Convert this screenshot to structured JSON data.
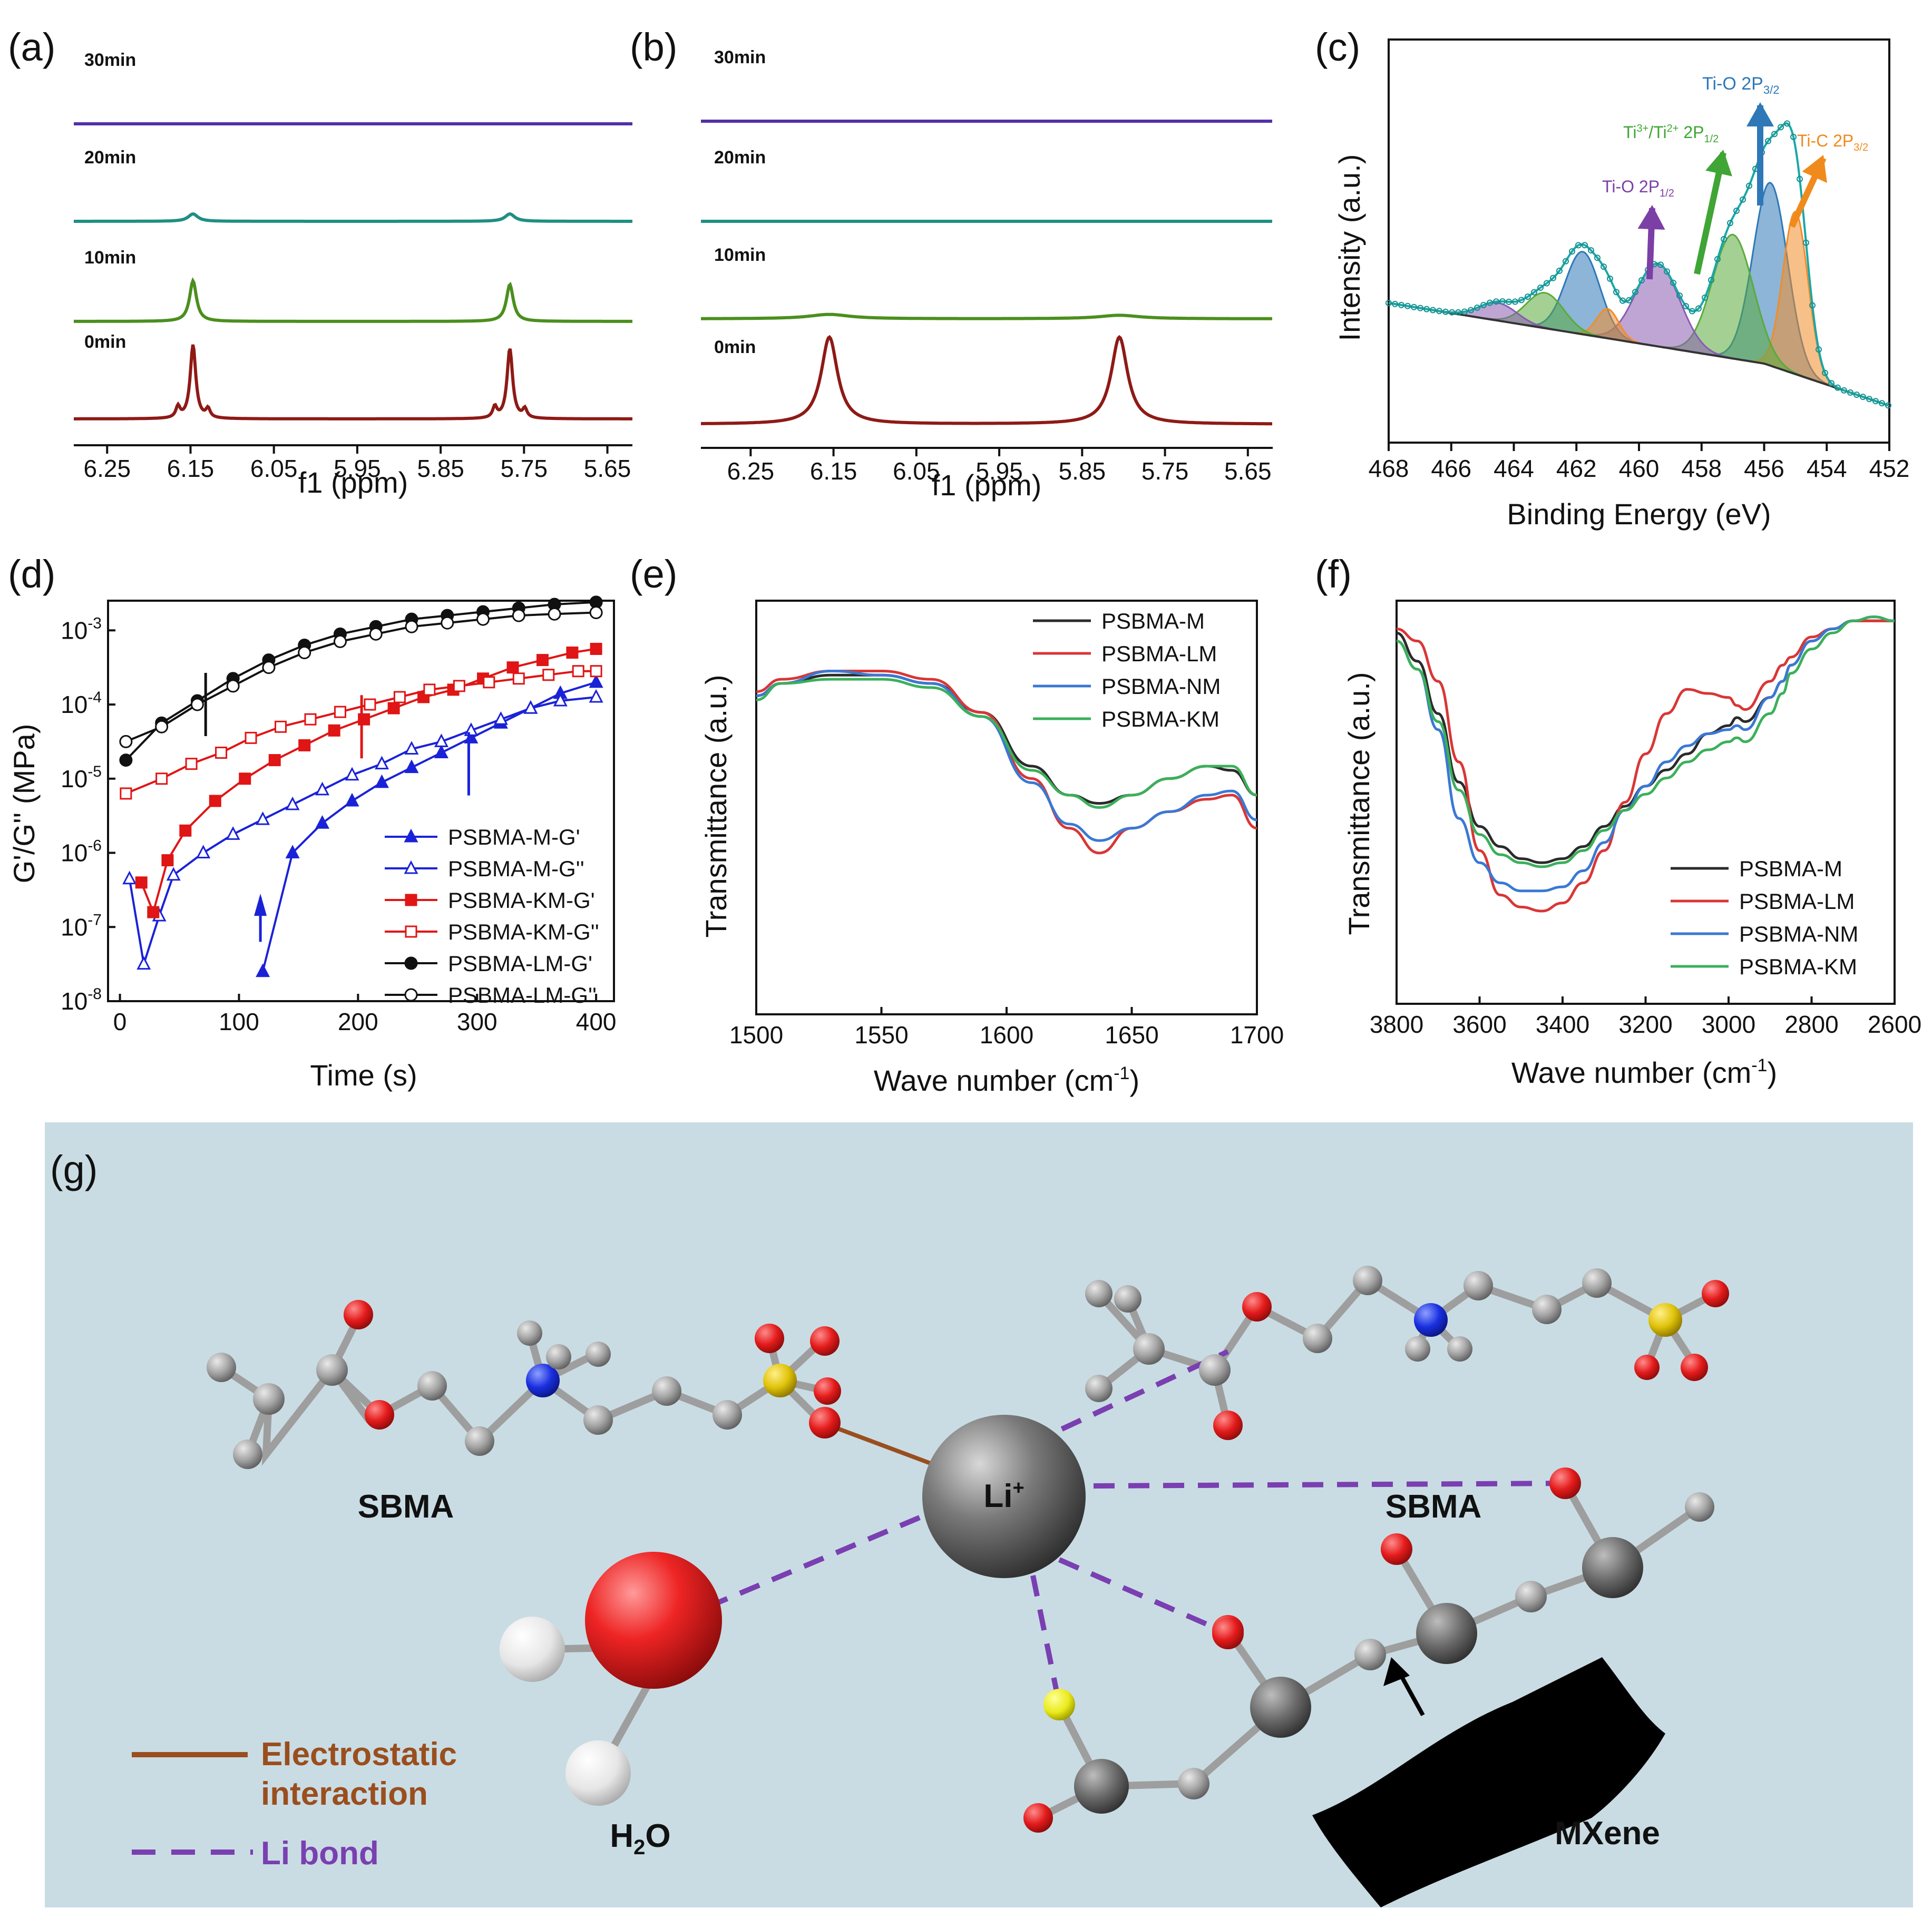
{
  "panel_labels": [
    "(a)",
    "(b)",
    "(c)",
    "(d)",
    "(e)",
    "(f)",
    "(g)"
  ],
  "chart_data": [
    {
      "id": "a",
      "type": "line",
      "xlabel": "f1 (ppm)",
      "ylabel": "",
      "xlim": [
        6.29,
        5.62
      ],
      "reversed_x": true,
      "xticks": [
        "6.25",
        "6.15",
        "6.05",
        "5.95",
        "5.85",
        "5.75",
        "5.65"
      ],
      "series": [
        {
          "name": "0min",
          "color": "#8e1a16",
          "peaks": [
            {
              "x": 6.147,
              "h": 1.0,
              "w": 0.004
            },
            {
              "x": 6.165,
              "h": 0.15,
              "w": 0.003
            },
            {
              "x": 6.129,
              "h": 0.12,
              "w": 0.003
            },
            {
              "x": 5.767,
              "h": 0.95,
              "w": 0.004
            },
            {
              "x": 5.785,
              "h": 0.15,
              "w": 0.003
            },
            {
              "x": 5.749,
              "h": 0.12,
              "w": 0.003
            }
          ]
        },
        {
          "name": "10min",
          "color": "#4b8f1e",
          "peaks": [
            {
              "x": 6.147,
              "h": 0.55,
              "w": 0.005
            },
            {
              "x": 5.767,
              "h": 0.5,
              "w": 0.005
            }
          ]
        },
        {
          "name": "20min",
          "color": "#1f8f84",
          "peaks": [
            {
              "x": 6.147,
              "h": 0.1,
              "w": 0.007
            },
            {
              "x": 5.767,
              "h": 0.1,
              "w": 0.007
            }
          ]
        },
        {
          "name": "30min",
          "color": "#5230a8",
          "peaks": []
        }
      ]
    },
    {
      "id": "b",
      "type": "line",
      "xlabel": "f1 (ppm)",
      "ylabel": "",
      "xlim": [
        6.31,
        5.62
      ],
      "reversed_x": true,
      "xticks": [
        "6.25",
        "6.15",
        "6.05",
        "5.95",
        "5.85",
        "5.75",
        "5.65"
      ],
      "series": [
        {
          "name": "0min",
          "color": "#8e1a16",
          "peaks": [
            {
              "x": 6.155,
              "h": 1.0,
              "w": 0.012
            },
            {
              "x": 5.805,
              "h": 1.0,
              "w": 0.012
            }
          ]
        },
        {
          "name": "10min",
          "color": "#4b8f1e",
          "peaks": [
            {
              "x": 6.155,
              "h": 0.05,
              "w": 0.03
            },
            {
              "x": 5.805,
              "h": 0.04,
              "w": 0.03
            }
          ]
        },
        {
          "name": "20min",
          "color": "#1f8f84",
          "peaks": []
        },
        {
          "name": "30min",
          "color": "#5230a8",
          "peaks": []
        }
      ]
    },
    {
      "id": "c",
      "type": "area",
      "title": "",
      "xlabel": "Binding Energy (eV)",
      "ylabel": "Intensity (a.u.)",
      "xlim": [
        468,
        452
      ],
      "reversed_x": true,
      "xticks": [
        "468",
        "466",
        "464",
        "462",
        "460",
        "458",
        "456",
        "454",
        "452"
      ],
      "components": [
        {
          "name": "Ti-O 2P3/2",
          "center": 455.8,
          "height": 0.62,
          "sigma": 0.55,
          "color": "#2e78b7"
        },
        {
          "name": "Ti-C 2P3/2",
          "center": 455.0,
          "height": 0.55,
          "sigma": 0.4,
          "color": "#f28c28"
        },
        {
          "name": "Ti3+/Ti2+ 2P1/2",
          "center": 457.0,
          "height": 0.42,
          "sigma": 0.65,
          "color": "#5aaa3c"
        },
        {
          "name": "Ti-O 2P1/2",
          "center": 459.4,
          "height": 0.28,
          "sigma": 0.7,
          "color": "#8a5bb0"
        },
        {
          "name": "Ti-O 2P3/2 sat",
          "center": 461.8,
          "height": 0.28,
          "sigma": 0.55,
          "color": "#2e78b7"
        },
        {
          "name": "Ti-C sat",
          "center": 461.0,
          "height": 0.1,
          "sigma": 0.35,
          "color": "#f28c28"
        },
        {
          "name": "Ti3+ sat",
          "center": 463.0,
          "height": 0.12,
          "sigma": 0.6,
          "color": "#5aaa3c"
        },
        {
          "name": "Ti-O 2P1/2 sat",
          "center": 464.5,
          "height": 0.06,
          "sigma": 0.6,
          "color": "#8a5bb0"
        }
      ],
      "annotations": {
        "ti_o_32": {
          "base": "Ti-O 2P",
          "sub": "3/2",
          "color": "#2e78b7"
        },
        "ti3": {
          "base1": "Ti",
          "sup1": "3+",
          "mid": "/Ti",
          "sup2": "2+",
          "tail": " 2P",
          "sub": "1/2",
          "color": "#3fa535"
        },
        "ti_o_12": {
          "base": "Ti-O 2P",
          "sub": "1/2",
          "color": "#7b3fa5"
        },
        "ti_c": {
          "base": "Ti-C 2P",
          "sub": "3/2",
          "color": "#f08a1c"
        }
      }
    },
    {
      "id": "d",
      "type": "scatter",
      "xlabel": "Time (s)",
      "ylabel": "G'/G'' (MPa)",
      "xlim": [
        -10,
        415
      ],
      "ylog": true,
      "ylim_exp": [
        -8,
        -2.6
      ],
      "xticks": [
        "0",
        "100",
        "200",
        "300",
        "400"
      ],
      "yticks": [
        {
          "base": "10",
          "exp": "-3"
        },
        {
          "base": "10",
          "exp": "-4"
        },
        {
          "base": "10",
          "exp": "-5"
        },
        {
          "base": "10",
          "exp": "-6"
        },
        {
          "base": "10",
          "exp": "-7"
        },
        {
          "base": "10",
          "exp": "-8"
        }
      ],
      "series": [
        {
          "name": "PSBMA-M-G'",
          "color": "#1a22d8",
          "filled": true,
          "marker": "triangle",
          "x": [
            120,
            145,
            170,
            195,
            220,
            245,
            270,
            295,
            320,
            345,
            370,
            400
          ],
          "log10y": [
            -7.6,
            -6.0,
            -5.6,
            -5.3,
            -5.05,
            -4.85,
            -4.65,
            -4.45,
            -4.25,
            -4.05,
            -3.85,
            -3.7
          ]
        },
        {
          "name": "PSBMA-M-G''",
          "color": "#1a22d8",
          "filled": false,
          "marker": "triangle",
          "x": [
            8,
            20,
            33,
            45,
            70,
            95,
            120,
            145,
            170,
            195,
            220,
            245,
            270,
            295,
            320,
            345,
            370,
            400
          ],
          "log10y": [
            -6.35,
            -7.5,
            -6.85,
            -6.3,
            -6.0,
            -5.75,
            -5.55,
            -5.35,
            -5.15,
            -4.95,
            -4.8,
            -4.6,
            -4.5,
            -4.35,
            -4.2,
            -4.05,
            -3.95,
            -3.9
          ]
        },
        {
          "name": "PSBMA-KM-G'",
          "color": "#e01515",
          "filled": true,
          "marker": "square",
          "x": [
            18,
            28,
            40,
            55,
            80,
            105,
            130,
            155,
            180,
            205,
            230,
            255,
            280,
            305,
            330,
            355,
            380,
            400
          ],
          "log10y": [
            -6.4,
            -6.8,
            -6.1,
            -5.7,
            -5.3,
            -5.0,
            -4.75,
            -4.55,
            -4.35,
            -4.2,
            -4.05,
            -3.9,
            -3.8,
            -3.65,
            -3.5,
            -3.4,
            -3.3,
            -3.25
          ]
        },
        {
          "name": "PSBMA-KM-G''",
          "color": "#e01515",
          "filled": false,
          "marker": "square",
          "x": [
            5,
            35,
            60,
            85,
            110,
            135,
            160,
            185,
            210,
            235,
            260,
            285,
            310,
            335,
            360,
            385,
            400
          ],
          "log10y": [
            -5.2,
            -5.0,
            -4.8,
            -4.65,
            -4.45,
            -4.3,
            -4.2,
            -4.1,
            -4.0,
            -3.9,
            -3.8,
            -3.75,
            -3.7,
            -3.65,
            -3.6,
            -3.55,
            -3.55
          ]
        },
        {
          "name": "PSBMA-LM-G'",
          "color": "#111111",
          "filled": true,
          "marker": "circle",
          "x": [
            5,
            35,
            65,
            95,
            125,
            155,
            185,
            215,
            245,
            275,
            305,
            335,
            365,
            400
          ],
          "log10y": [
            -4.75,
            -4.25,
            -3.95,
            -3.65,
            -3.4,
            -3.2,
            -3.05,
            -2.95,
            -2.85,
            -2.8,
            -2.75,
            -2.7,
            -2.65,
            -2.62
          ]
        },
        {
          "name": "PSBMA-LM-G''",
          "color": "#111111",
          "filled": false,
          "marker": "circle",
          "x": [
            5,
            35,
            65,
            95,
            125,
            155,
            185,
            215,
            245,
            275,
            305,
            335,
            365,
            400
          ],
          "log10y": [
            -4.5,
            -4.3,
            -4.0,
            -3.75,
            -3.5,
            -3.3,
            -3.15,
            -3.05,
            -2.95,
            -2.9,
            -2.85,
            -2.8,
            -2.78,
            -2.76
          ]
        }
      ],
      "crossovers": [
        {
          "x": 72,
          "log10y": -4.0,
          "color": "#111111"
        },
        {
          "x": 203,
          "log10y": -4.3,
          "color": "#e01515"
        },
        {
          "x": 293,
          "log10y": -4.8,
          "color": "#1a22d8"
        }
      ]
    },
    {
      "id": "e",
      "type": "line",
      "xlabel": "Wave number (cm-1)",
      "ylabel": "Transmittance (a.u.)",
      "xlim": [
        1500,
        1700
      ],
      "xticks": [
        "1500",
        "1550",
        "1600",
        "1650",
        "1700"
      ],
      "series": [
        {
          "name": "PSBMA-M",
          "color": "#2b2b2b",
          "x": [
            1500,
            1510,
            1530,
            1550,
            1570,
            1590,
            1610,
            1625,
            1637,
            1650,
            1665,
            1680,
            1690,
            1700
          ],
          "y": [
            0.77,
            0.8,
            0.82,
            0.82,
            0.8,
            0.73,
            0.6,
            0.53,
            0.51,
            0.53,
            0.57,
            0.6,
            0.59,
            0.53
          ]
        },
        {
          "name": "PSBMA-LM",
          "color": "#d93636",
          "x": [
            1500,
            1510,
            1530,
            1550,
            1570,
            1590,
            1610,
            1625,
            1637,
            1650,
            1665,
            1680,
            1690,
            1700
          ],
          "y": [
            0.78,
            0.81,
            0.83,
            0.83,
            0.81,
            0.73,
            0.57,
            0.45,
            0.39,
            0.45,
            0.49,
            0.52,
            0.53,
            0.45
          ]
        },
        {
          "name": "PSBMA-NM",
          "color": "#3a78d4",
          "x": [
            1500,
            1510,
            1530,
            1550,
            1570,
            1590,
            1610,
            1625,
            1637,
            1650,
            1665,
            1680,
            1690,
            1700
          ],
          "y": [
            0.77,
            0.8,
            0.83,
            0.82,
            0.8,
            0.72,
            0.56,
            0.46,
            0.42,
            0.45,
            0.49,
            0.53,
            0.54,
            0.47
          ]
        },
        {
          "name": "PSBMA-KM",
          "color": "#3bb05a",
          "x": [
            1500,
            1510,
            1530,
            1550,
            1570,
            1590,
            1610,
            1625,
            1637,
            1650,
            1665,
            1680,
            1690,
            1700
          ],
          "y": [
            0.76,
            0.8,
            0.81,
            0.81,
            0.79,
            0.72,
            0.59,
            0.53,
            0.5,
            0.53,
            0.57,
            0.6,
            0.6,
            0.53
          ]
        }
      ]
    },
    {
      "id": "f",
      "type": "line",
      "xlabel": "Wave number (cm-1)",
      "ylabel": "Transmittance (a.u.)",
      "xlim": [
        3800,
        2600
      ],
      "reversed_x": true,
      "xticks": [
        "3800",
        "3600",
        "3400",
        "3200",
        "3000",
        "2800",
        "2600"
      ],
      "series": [
        {
          "name": "PSBMA-M",
          "color": "#2b2b2b",
          "x": [
            3800,
            3750,
            3700,
            3650,
            3600,
            3550,
            3500,
            3450,
            3400,
            3350,
            3300,
            3250,
            3200,
            3150,
            3100,
            3050,
            3000,
            2980,
            2960,
            2900,
            2870,
            2850,
            2800,
            2750,
            2700,
            2650,
            2600
          ],
          "y": [
            0.92,
            0.85,
            0.72,
            0.55,
            0.44,
            0.39,
            0.36,
            0.35,
            0.36,
            0.39,
            0.44,
            0.49,
            0.54,
            0.58,
            0.62,
            0.67,
            0.69,
            0.71,
            0.7,
            0.76,
            0.8,
            0.84,
            0.9,
            0.93,
            0.95,
            0.95,
            0.95
          ]
        },
        {
          "name": "PSBMA-LM",
          "color": "#d93636",
          "x": [
            3800,
            3750,
            3700,
            3650,
            3600,
            3550,
            3500,
            3450,
            3400,
            3350,
            3300,
            3250,
            3200,
            3150,
            3100,
            3050,
            3000,
            2980,
            2960,
            2900,
            2870,
            2850,
            2800,
            2750,
            2700,
            2650,
            2600
          ],
          "y": [
            0.93,
            0.9,
            0.8,
            0.6,
            0.38,
            0.27,
            0.24,
            0.23,
            0.25,
            0.3,
            0.38,
            0.5,
            0.62,
            0.72,
            0.78,
            0.77,
            0.76,
            0.74,
            0.73,
            0.8,
            0.84,
            0.86,
            0.91,
            0.93,
            0.95,
            0.95,
            0.95
          ]
        },
        {
          "name": "PSBMA-NM",
          "color": "#3a78d4",
          "x": [
            3800,
            3750,
            3700,
            3650,
            3600,
            3550,
            3500,
            3450,
            3400,
            3350,
            3300,
            3250,
            3200,
            3150,
            3100,
            3050,
            3000,
            2980,
            2960,
            2900,
            2870,
            2850,
            2800,
            2750,
            2700,
            2650,
            2600
          ],
          "y": [
            0.9,
            0.83,
            0.68,
            0.46,
            0.35,
            0.3,
            0.28,
            0.28,
            0.29,
            0.33,
            0.4,
            0.48,
            0.54,
            0.6,
            0.64,
            0.67,
            0.68,
            0.69,
            0.68,
            0.76,
            0.8,
            0.84,
            0.9,
            0.93,
            0.95,
            0.96,
            0.95
          ]
        },
        {
          "name": "PSBMA-KM",
          "color": "#3bb05a",
          "x": [
            3800,
            3750,
            3700,
            3650,
            3600,
            3550,
            3500,
            3450,
            3400,
            3350,
            3300,
            3250,
            3200,
            3150,
            3100,
            3050,
            3000,
            2980,
            2960,
            2900,
            2870,
            2850,
            2800,
            2750,
            2700,
            2650,
            2600
          ],
          "y": [
            0.9,
            0.83,
            0.7,
            0.53,
            0.42,
            0.37,
            0.35,
            0.34,
            0.35,
            0.38,
            0.43,
            0.48,
            0.52,
            0.56,
            0.6,
            0.63,
            0.65,
            0.66,
            0.65,
            0.72,
            0.77,
            0.82,
            0.88,
            0.92,
            0.95,
            0.96,
            0.95
          ]
        }
      ]
    }
  ],
  "schematic": {
    "labels": {
      "sbma_left": "SBMA",
      "sbma_right": "SBMA",
      "li": "Li",
      "li_charge": "+",
      "water_h": "H",
      "water_sub": "2",
      "water_o": "O",
      "mxene": "MXene"
    },
    "legend": {
      "electrostatic": "Electrostatic",
      "interaction": "interaction",
      "li_bond": "Li bond"
    },
    "colors": {
      "background": "#c9dce4",
      "electrostatic": "#9a4e1e",
      "li_bond": "#7a3fb0",
      "carbon": "#9e9e9e",
      "oxygen": "#e31b1b",
      "nitrogen": "#1a2fe0",
      "sulfur": "#e0c30a",
      "hydrogen": "#f0f0f0",
      "lithium": "#6e6e6e"
    }
  }
}
